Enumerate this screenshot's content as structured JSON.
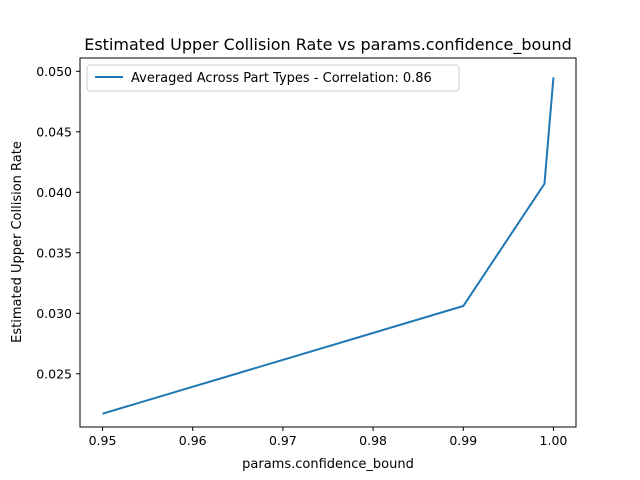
{
  "chart_data": {
    "type": "line",
    "title": "Estimated Upper Collision Rate vs params.confidence_bound",
    "xlabel": "params.confidence_bound",
    "ylabel": "Estimated Upper Collision Rate",
    "xlim": [
      0.9475,
      1.0025
    ],
    "ylim": [
      0.0206,
      0.0511
    ],
    "x_ticks": [
      0.95,
      0.96,
      0.97,
      0.98,
      0.99,
      1.0
    ],
    "x_tick_labels": [
      "0.95",
      "0.96",
      "0.97",
      "0.98",
      "0.99",
      "1.00"
    ],
    "y_ticks": [
      0.025,
      0.03,
      0.035,
      0.04,
      0.045,
      0.05
    ],
    "y_tick_labels": [
      "0.025",
      "0.030",
      "0.035",
      "0.040",
      "0.045",
      "0.050"
    ],
    "grid": false,
    "legend_position": "top-left",
    "series": [
      {
        "name": "Averaged Across Part Types - Correlation: 0.86",
        "color": "#1f77b4",
        "x": [
          0.95,
          0.99,
          0.999,
          1.0
        ],
        "y": [
          0.0217,
          0.0306,
          0.0407,
          0.0495
        ]
      }
    ]
  }
}
